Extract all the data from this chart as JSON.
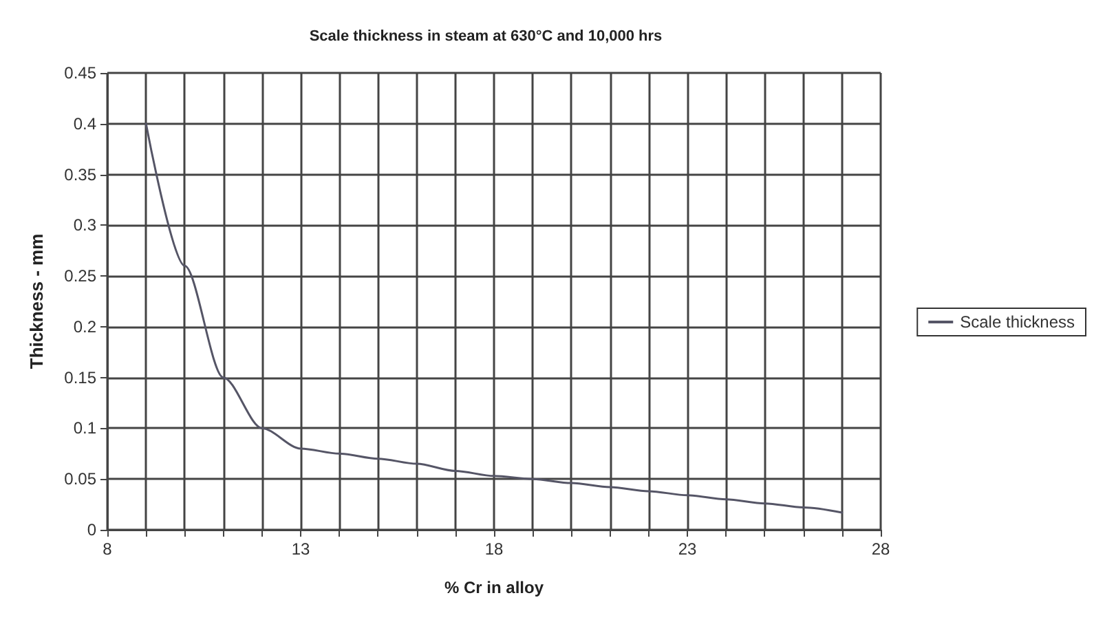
{
  "chart_data": {
    "type": "line",
    "title": "Scale thickness in steam at 630°C and 10,000 hrs",
    "xlabel": "% Cr in alloy",
    "ylabel": "Thickness - mm",
    "x": [
      9,
      10,
      11,
      12,
      13,
      14,
      15,
      16,
      17,
      18,
      19,
      20,
      21,
      22,
      23,
      24,
      25,
      26,
      27
    ],
    "series": [
      {
        "name": "Scale thickness",
        "color": "#555566",
        "values": [
          0.4,
          0.26,
          0.15,
          0.1,
          0.08,
          0.075,
          0.07,
          0.065,
          0.058,
          0.053,
          0.05,
          0.046,
          0.042,
          0.038,
          0.034,
          0.03,
          0.026,
          0.022,
          0.017
        ]
      }
    ],
    "xlim": [
      8,
      28
    ],
    "xticks": [
      8,
      {
        "value": 9,
        "label": null
      },
      {
        "value": 10,
        "label": null
      },
      {
        "value": 11,
        "label": null
      },
      {
        "value": 12,
        "label": null
      },
      13,
      {
        "value": 14,
        "label": null
      },
      {
        "value": 15,
        "label": null
      },
      {
        "value": 16,
        "label": null
      },
      {
        "value": 17,
        "label": null
      },
      18,
      {
        "value": 19,
        "label": null
      },
      {
        "value": 20,
        "label": null
      },
      {
        "value": 21,
        "label": null
      },
      {
        "value": 22,
        "label": null
      },
      23,
      {
        "value": 24,
        "label": null
      },
      {
        "value": 25,
        "label": null
      },
      {
        "value": 26,
        "label": null
      },
      {
        "value": 27,
        "label": null
      },
      28
    ],
    "ylim": [
      0,
      0.45
    ],
    "yticks": [
      0,
      0.05,
      0.1,
      0.15,
      0.2,
      0.25,
      0.3,
      0.35,
      0.4,
      0.45
    ],
    "grid": true,
    "legend": "right",
    "marker": "none",
    "line_style": "solid"
  }
}
